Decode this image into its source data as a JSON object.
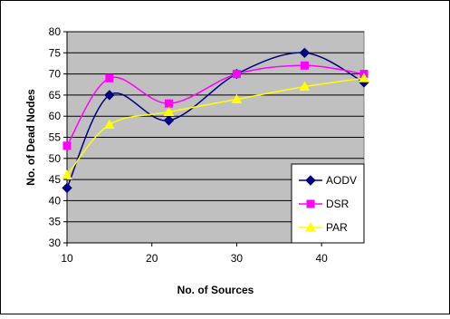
{
  "chart_data": {
    "type": "line",
    "title": "",
    "xlabel": "No. of Sources",
    "ylabel": "No. of Dead Nodes",
    "xlim": [
      10,
      45
    ],
    "ylim": [
      30,
      80
    ],
    "xticks": [
      10,
      20,
      30,
      40
    ],
    "yticks": [
      30,
      35,
      40,
      45,
      50,
      55,
      60,
      65,
      70,
      75,
      80
    ],
    "grid": true,
    "legend_position": "right",
    "plot_background": "#c0c0c0",
    "series": [
      {
        "name": "AODV",
        "color": "#000080",
        "marker": "diamond",
        "x": [
          10,
          15,
          22,
          30,
          38,
          45
        ],
        "values": [
          43,
          65,
          59,
          70,
          75,
          68
        ]
      },
      {
        "name": "DSR",
        "color": "#ff00ff",
        "marker": "square",
        "x": [
          10,
          15,
          22,
          30,
          38,
          45
        ],
        "values": [
          53,
          69,
          63,
          70,
          72,
          70
        ]
      },
      {
        "name": "PAR",
        "color": "#ffff00",
        "marker": "triangle",
        "x": [
          10,
          15,
          22,
          30,
          38,
          45
        ],
        "values": [
          46,
          58,
          61,
          64,
          67,
          69
        ]
      }
    ]
  }
}
